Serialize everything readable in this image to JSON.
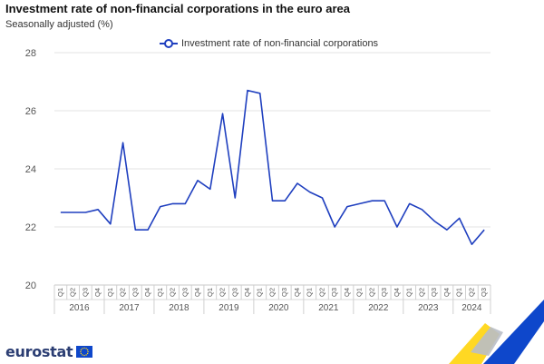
{
  "header": {
    "title": "Investment rate of non-financial corporations in the euro area",
    "subtitle": "Seasonally adjusted (%)"
  },
  "legend": {
    "label": "Investment rate of non-financial corporations"
  },
  "branding": {
    "logo_text": "eurostat"
  },
  "colors": {
    "line": "#1f3fbf",
    "grid": "#e3e3e3",
    "axis_text": "#555555",
    "logo_blue": "#2c3e73",
    "eu_blue": "#0e47cb",
    "eu_yellow": "#ffd617"
  },
  "chart_data": {
    "type": "line",
    "title": "Investment rate of non-financial corporations in the euro area",
    "subtitle": "Seasonally adjusted (%)",
    "xlabel": "",
    "ylabel": "",
    "ylim": [
      20,
      28
    ],
    "yticks": [
      20,
      22,
      24,
      26,
      28
    ],
    "grid": true,
    "legend_position": "top",
    "years": [
      "2016",
      "2017",
      "2018",
      "2019",
      "2020",
      "2021",
      "2022",
      "2023",
      "2024"
    ],
    "quarter_labels": [
      "Q1",
      "Q2",
      "Q3",
      "Q4"
    ],
    "x": [
      "2016-Q1",
      "2016-Q2",
      "2016-Q3",
      "2016-Q4",
      "2017-Q1",
      "2017-Q2",
      "2017-Q3",
      "2017-Q4",
      "2018-Q1",
      "2018-Q2",
      "2018-Q3",
      "2018-Q4",
      "2019-Q1",
      "2019-Q2",
      "2019-Q3",
      "2019-Q4",
      "2020-Q1",
      "2020-Q2",
      "2020-Q3",
      "2020-Q4",
      "2021-Q1",
      "2021-Q2",
      "2021-Q3",
      "2021-Q4",
      "2022-Q1",
      "2022-Q2",
      "2022-Q3",
      "2022-Q4",
      "2023-Q1",
      "2023-Q2",
      "2023-Q3",
      "2023-Q4",
      "2024-Q1",
      "2024-Q2",
      "2024-Q3"
    ],
    "series": [
      {
        "name": "Investment rate of non-financial corporations",
        "values": [
          22.5,
          22.5,
          22.5,
          22.6,
          22.1,
          24.9,
          21.9,
          21.9,
          22.7,
          22.8,
          22.8,
          23.6,
          23.3,
          25.9,
          23.0,
          26.7,
          26.6,
          22.9,
          22.9,
          23.5,
          23.2,
          23.0,
          22.0,
          22.7,
          22.8,
          22.9,
          22.9,
          22.0,
          22.8,
          22.6,
          22.2,
          21.9,
          22.3,
          21.4,
          21.9
        ]
      }
    ]
  }
}
